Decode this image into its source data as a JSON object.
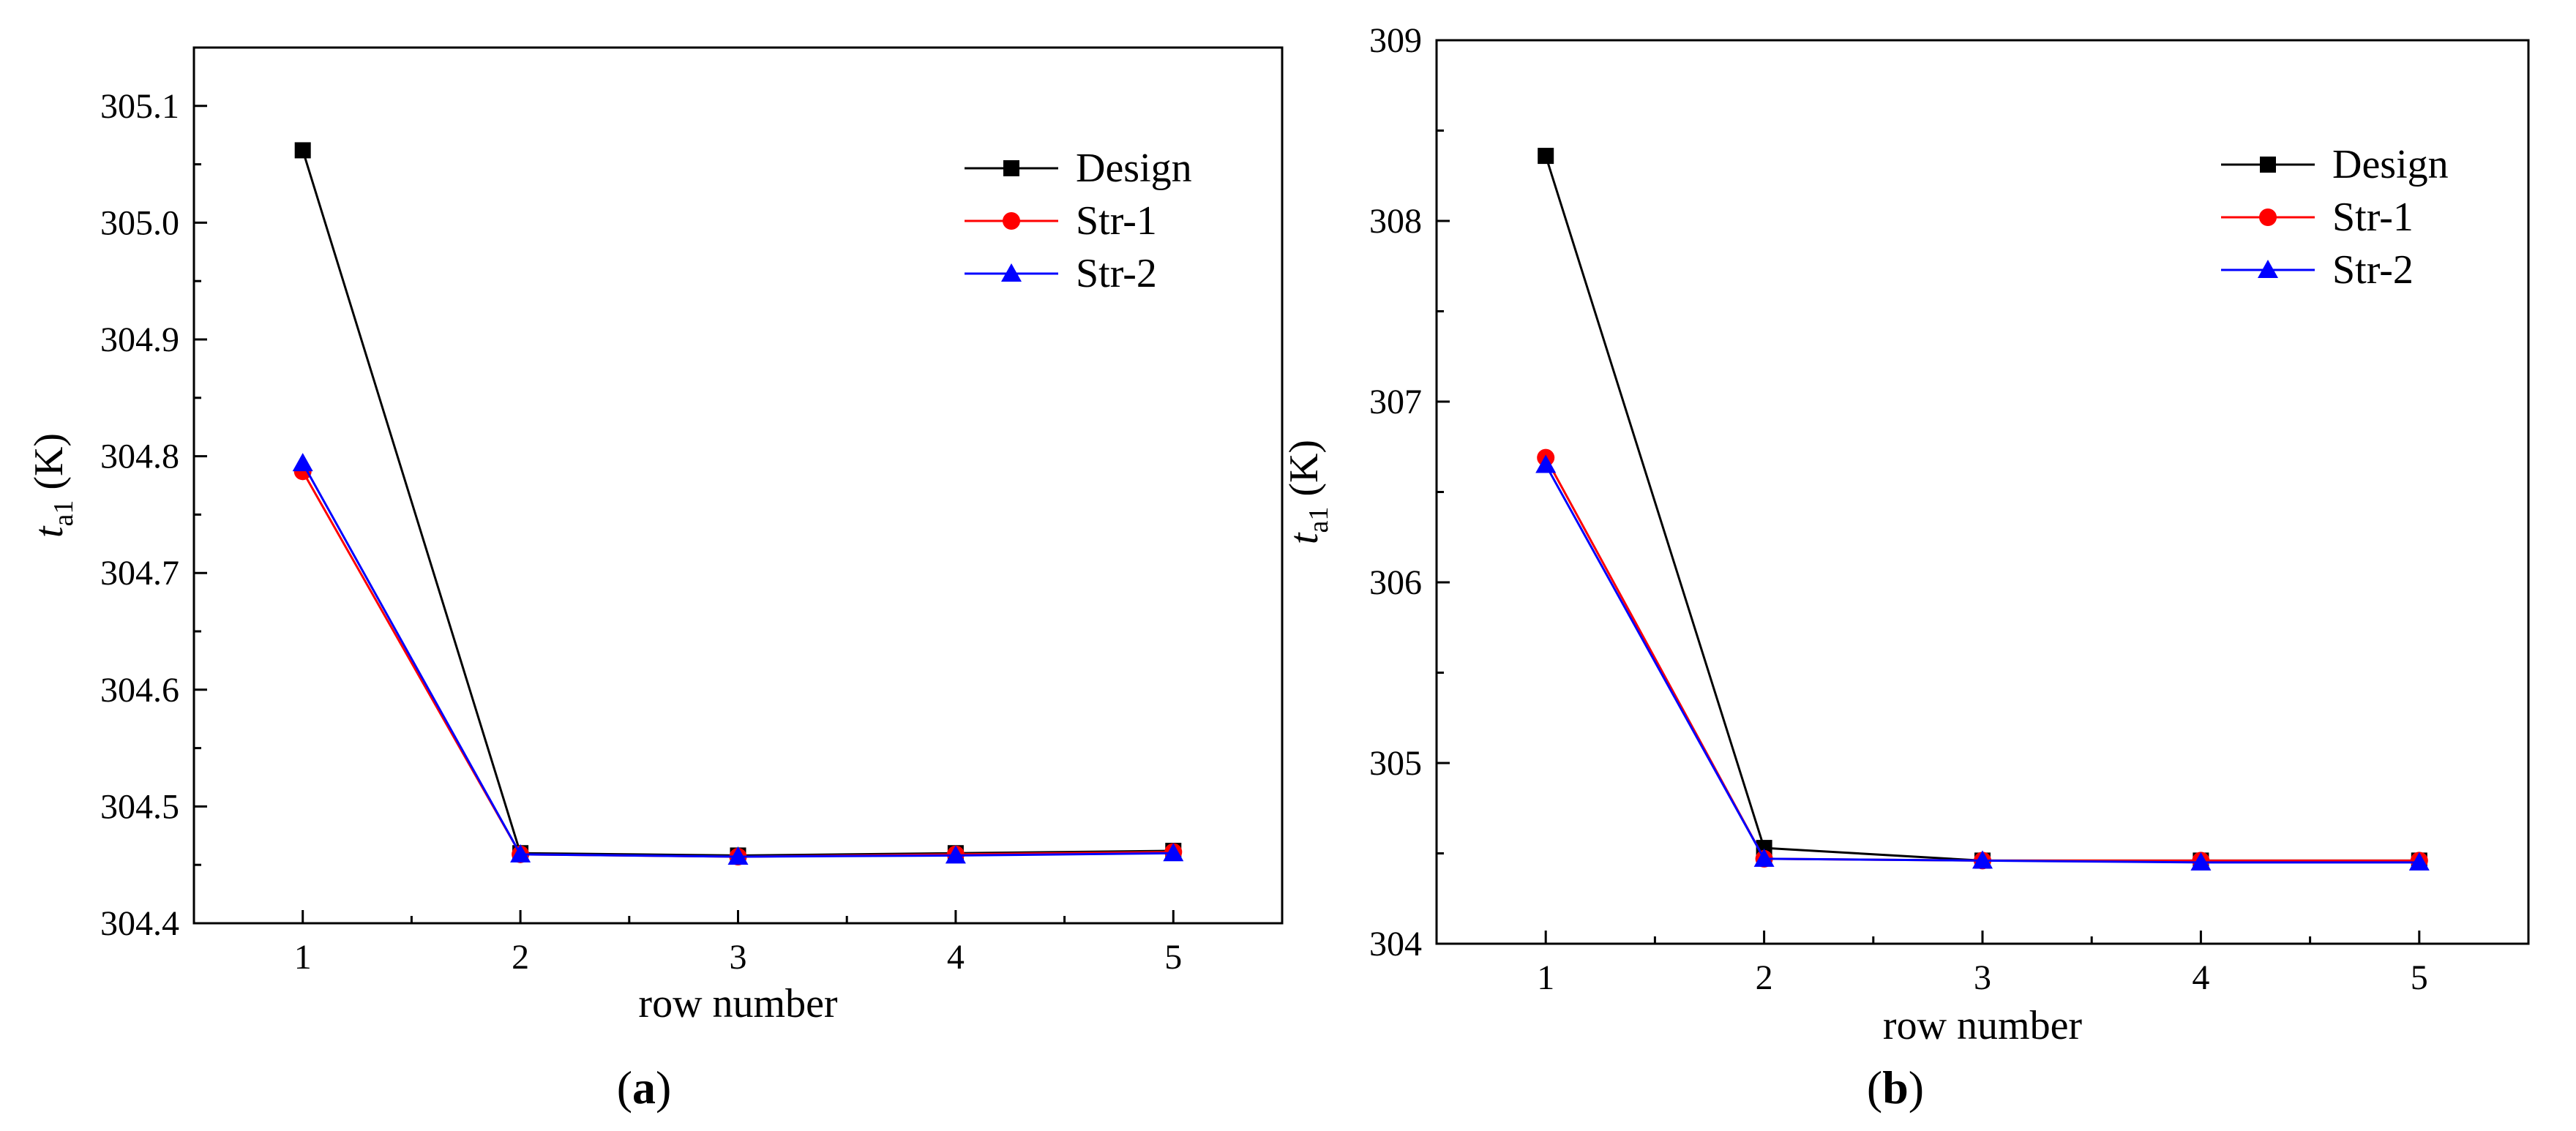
{
  "chart_data": [
    {
      "type": "line",
      "panel_label": "(a)",
      "panel_letter": "a",
      "title": "",
      "xlabel": "row number",
      "ylabel_main": "t",
      "ylabel_sub": "a1",
      "ylabel_unit": "(K)",
      "categories": [
        1,
        2,
        3,
        4,
        5
      ],
      "xlim": [
        0.5,
        5.5
      ],
      "ylim": [
        304.4,
        305.15
      ],
      "yticks": [
        304.4,
        304.5,
        304.6,
        304.7,
        304.8,
        304.9,
        305.0,
        305.1
      ],
      "ytick_labels": [
        "304.4",
        "304.5",
        "304.6",
        "304.7",
        "304.8",
        "304.9",
        "305.0",
        "305.1"
      ],
      "xtick_labels": [
        "1",
        "2",
        "3",
        "4",
        "5"
      ],
      "grid": false,
      "legend_position": "top-right",
      "series": [
        {
          "name": "Design",
          "color": "#000000",
          "marker": "square",
          "values": [
            305.062,
            304.46,
            304.458,
            304.46,
            304.462
          ]
        },
        {
          "name": "Str-1",
          "color": "#ff0000",
          "marker": "circle",
          "values": [
            304.787,
            304.459,
            304.457,
            304.459,
            304.461
          ]
        },
        {
          "name": "Str-2",
          "color": "#0000ff",
          "marker": "triangle",
          "values": [
            304.794,
            304.459,
            304.457,
            304.458,
            304.46
          ]
        }
      ]
    },
    {
      "type": "line",
      "panel_label": "(b)",
      "panel_letter": "b",
      "title": "",
      "xlabel": "row number",
      "ylabel_main": "t",
      "ylabel_sub": "a1",
      "ylabel_unit": "(K)",
      "categories": [
        1,
        2,
        3,
        4,
        5
      ],
      "xlim": [
        0.5,
        5.5
      ],
      "ylim": [
        304,
        309
      ],
      "yticks": [
        304,
        305,
        306,
        307,
        308,
        309
      ],
      "ytick_labels": [
        "304",
        "305",
        "306",
        "307",
        "308",
        "309"
      ],
      "xtick_labels": [
        "1",
        "2",
        "3",
        "4",
        "5"
      ],
      "grid": false,
      "legend_position": "top-right",
      "series": [
        {
          "name": "Design",
          "color": "#000000",
          "marker": "square",
          "values": [
            308.36,
            304.53,
            304.46,
            304.46,
            304.46
          ]
        },
        {
          "name": "Str-1",
          "color": "#ff0000",
          "marker": "circle",
          "values": [
            306.69,
            304.47,
            304.46,
            304.46,
            304.46
          ]
        },
        {
          "name": "Str-2",
          "color": "#0000ff",
          "marker": "triangle",
          "values": [
            306.65,
            304.47,
            304.46,
            304.45,
            304.45
          ]
        }
      ]
    }
  ]
}
